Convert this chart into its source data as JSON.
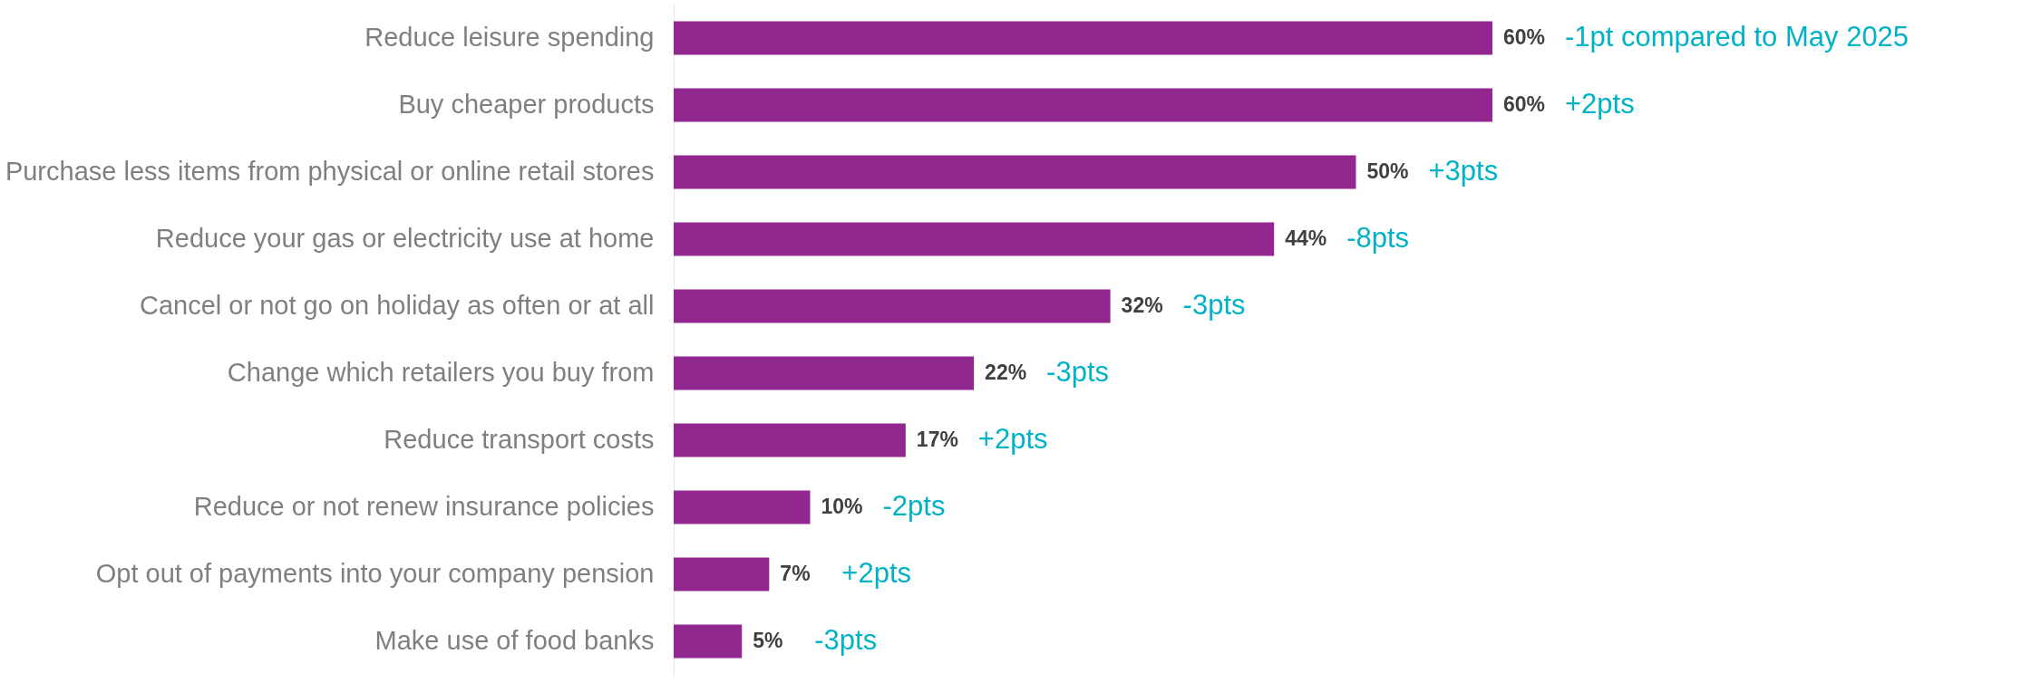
{
  "chart_data": {
    "type": "bar",
    "orientation": "horizontal",
    "categories": [
      "Reduce leisure spending",
      "Buy cheaper products",
      "Purchase less items from physical or online retail stores",
      "Reduce your gas or electricity use at home",
      "Cancel or not go on holiday as often or at all",
      "Change which retailers you buy from",
      "Reduce transport costs",
      "Reduce or not renew insurance policies",
      "Opt out of payments into your company pension",
      "Make use of food banks"
    ],
    "values": [
      60,
      60,
      50,
      44,
      32,
      22,
      17,
      10,
      7,
      5
    ],
    "value_labels": [
      "60%",
      "60%",
      "50%",
      "44%",
      "32%",
      "22%",
      "17%",
      "10%",
      "7%",
      "5%"
    ],
    "color": "#92278f",
    "annotations": [
      {
        "text": "-1pt compared to May 2025",
        "x": 60,
        "y": "Reduce leisure spending"
      },
      {
        "text": "+2pts",
        "x": 60,
        "y": "Buy cheaper products"
      },
      {
        "text": "+3pts",
        "x": 50,
        "y": "Purchase less items from physical or online retail stores"
      },
      {
        "text": "-8pts",
        "x": 44,
        "y": "Reduce your gas or electricity use at home"
      },
      {
        "text": "-3pts",
        "x": 32,
        "y": "Cancel or not go on holiday as often or at all"
      },
      {
        "text": "-3pts",
        "x": 22,
        "y": "Change which retailers you buy from"
      },
      {
        "text": "+2pts",
        "x": 17,
        "y": "Reduce transport costs"
      },
      {
        "text": "-2pts",
        "x": 10,
        "y": "Reduce or not renew insurance policies"
      },
      {
        "text": "+2pts",
        "x": 7,
        "y": "Opt out of payments into your company pension"
      },
      {
        "text": "-3pts",
        "x": 5,
        "y": "Make use of food banks"
      }
    ]
  }
}
